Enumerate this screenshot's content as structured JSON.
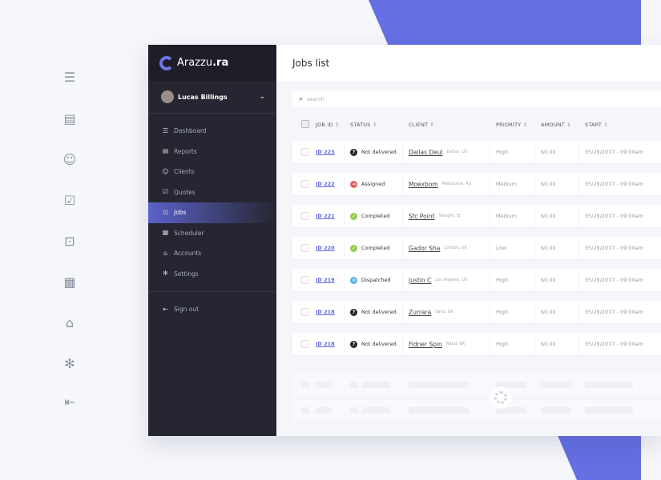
{
  "colors": {
    "accent": "#6470e4",
    "sidebar": "#262632",
    "link": "#5b66e0"
  },
  "left_icons": [
    "list-icon",
    "clipboard-icon",
    "user-icon",
    "quote-icon",
    "jobs-icon",
    "scheduler-icon",
    "accounts-icon",
    "settings-icon",
    "signout-icon"
  ],
  "brand": {
    "name": "Arazzu",
    "suffix": ".ra"
  },
  "user": {
    "name": "Lucas Billings"
  },
  "sidebar": {
    "items": [
      {
        "label": "Dashboard",
        "icon": "list-icon"
      },
      {
        "label": "Reports",
        "icon": "clipboard-icon"
      },
      {
        "label": "Clients",
        "icon": "user-icon"
      },
      {
        "label": "Quotes",
        "icon": "quote-icon"
      },
      {
        "label": "Jobs",
        "icon": "jobs-icon",
        "active": true
      },
      {
        "label": "Scheduler",
        "icon": "scheduler-icon"
      },
      {
        "label": "Accounts",
        "icon": "accounts-icon"
      },
      {
        "label": "Settings",
        "icon": "settings-icon"
      }
    ],
    "signout": "Sign out"
  },
  "header": {
    "title": "Jobs list"
  },
  "search": {
    "placeholder": "search"
  },
  "table": {
    "columns": [
      "JOB ID",
      "STATUS",
      "CLIENT",
      "PRIORITY",
      "AMOUNT",
      "START"
    ],
    "rows": [
      {
        "id": "ID 223",
        "status": "Not delivered",
        "status_type": "not-delivered",
        "client": "Dallas Deul",
        "location": "Dallas, US",
        "priority": "High",
        "amount": "$0.00",
        "start": "05/29/2017 - 09:00am"
      },
      {
        "id": "ID 222",
        "status": "Assigned",
        "status_type": "assigned",
        "client": "Moexbom",
        "location": "Melbourne, AU",
        "priority": "Medium",
        "amount": "$0.00",
        "start": "05/29/2017 - 09:00am"
      },
      {
        "id": "ID 221",
        "status": "Completed",
        "status_type": "completed",
        "client": "Sfc Point",
        "location": "Tallaght, IE",
        "priority": "Medium",
        "amount": "$0.00",
        "start": "05/29/2017 - 09:00am"
      },
      {
        "id": "ID 220",
        "status": "Completed",
        "status_type": "completed",
        "client": "Gador Sha",
        "location": "London, UK",
        "priority": "Low",
        "amount": "$0.00",
        "start": "05/29/2017 - 09:00am"
      },
      {
        "id": "ID 219",
        "status": "Dispatched",
        "status_type": "dispatched",
        "client": "Justin C",
        "location": "Los Angeles, US",
        "priority": "High",
        "amount": "$0.00",
        "start": "05/29/2017 - 09:00am"
      },
      {
        "id": "ID 218",
        "status": "Not delivered",
        "status_type": "not-delivered",
        "client": "Zurrara",
        "location": "Salto, BR",
        "priority": "High",
        "amount": "$0.00",
        "start": "05/29/2017 - 09:00am"
      },
      {
        "id": "ID 218",
        "status": "Not delivered",
        "status_type": "not-delivered",
        "client": "Fidner Spin",
        "location": "Natal, BR",
        "priority": "High",
        "amount": "$0.00",
        "start": "05/29/2017 - 09:00am"
      }
    ]
  },
  "status_styles": {
    "not-delivered": {
      "color": "#262632",
      "glyph": "?"
    },
    "assigned": {
      "color": "#e8605a",
      "glyph": "→"
    },
    "completed": {
      "color": "#8fd14f",
      "glyph": "✓"
    },
    "dispatched": {
      "color": "#4fb3e8",
      "glyph": "✉"
    }
  }
}
